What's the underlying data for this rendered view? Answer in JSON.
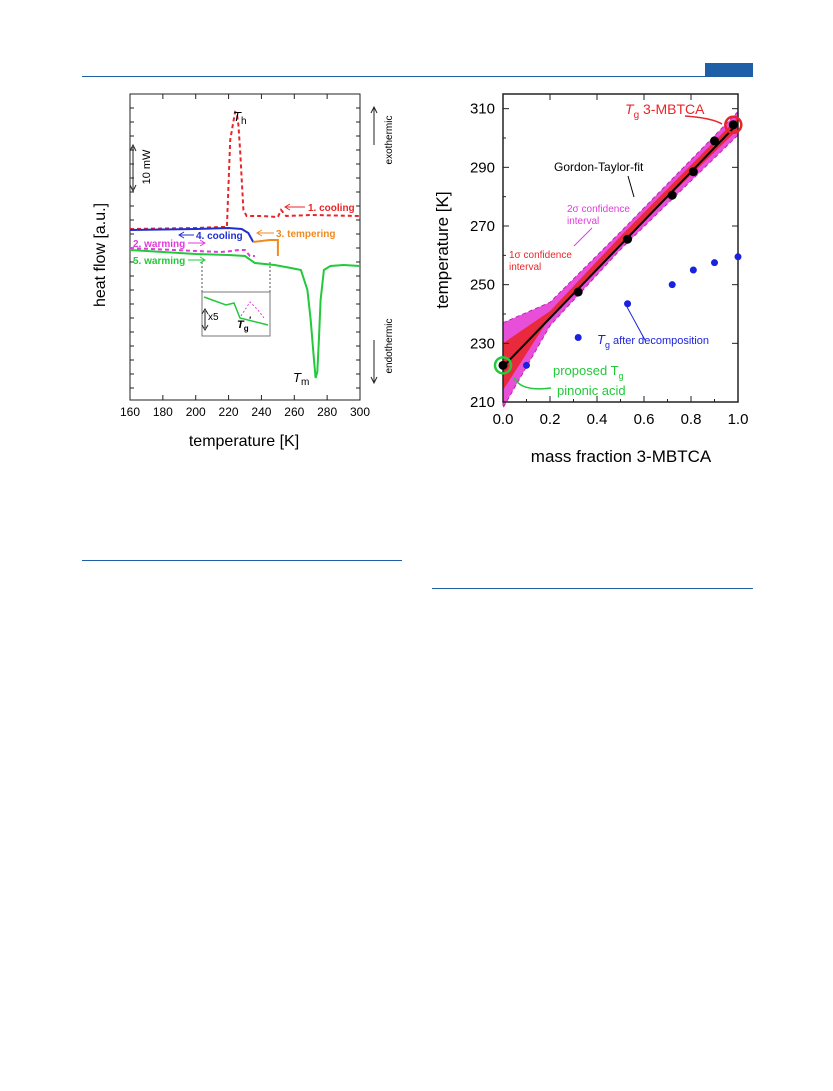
{
  "chart_data": [
    {
      "type": "line",
      "xlabel": "temperature [K]",
      "ylabel": "heat flow [a.u.]",
      "xlim": [
        160,
        300
      ],
      "xticks": [
        "160",
        "180",
        "200",
        "220",
        "240",
        "260",
        "280",
        "300"
      ],
      "grid": false,
      "scale_bar": "10 mW",
      "side_labels": {
        "top": "exothermic",
        "bottom": "endothermic"
      },
      "annotations": {
        "Th": "T",
        "Th_sub": "h",
        "Tm": "T",
        "Tm_sub": "m",
        "inset_scale": "x5",
        "inset_tg": "T",
        "inset_tg_sub": "g",
        "inset_tg_sup": "'"
      },
      "series": [
        {
          "name": "1. cooling",
          "color": "#e8262a",
          "style": "dashed",
          "x": [
            160,
            200,
            215,
            219,
            221,
            223,
            224,
            225,
            226,
            227,
            229,
            231,
            240,
            250,
            252,
            255,
            270,
            300
          ],
          "y": [
            229,
            228,
            227,
            227,
            140,
            121,
            112,
            113,
            125,
            150,
            210,
            216,
            216,
            217,
            210,
            216,
            215,
            216
          ]
        },
        {
          "name": "4. cooling",
          "color": "#1f2fd0",
          "style": "solid",
          "x": [
            160,
            200,
            220,
            228,
            232,
            235
          ],
          "y": [
            230,
            229,
            228,
            229,
            233,
            242
          ]
        },
        {
          "name": "3. tempering",
          "color": "#f08a1e",
          "style": "solid",
          "x": [
            235,
            245,
            250,
            250
          ],
          "y": [
            242,
            240,
            240,
            256
          ]
        },
        {
          "name": "2. warming",
          "color": "#e23bdc",
          "style": "dashed",
          "x": [
            160,
            200,
            215,
            222,
            226,
            230,
            233,
            236
          ],
          "y": [
            248,
            251,
            252,
            251,
            250,
            250,
            256,
            256
          ]
        },
        {
          "name": "5. warming",
          "color": "#22c93a",
          "style": "solid",
          "x": [
            160,
            200,
            220,
            230,
            236,
            248,
            258,
            264,
            268,
            270,
            272,
            273,
            274,
            275,
            276,
            278,
            282,
            290,
            300
          ],
          "y": [
            250,
            254,
            255,
            256,
            263,
            265,
            268,
            270,
            290,
            320,
            360,
            378,
            372,
            340,
            300,
            270,
            266,
            265,
            266
          ]
        }
      ]
    },
    {
      "type": "scatter",
      "xlabel": "mass fraction 3-MBTCA",
      "ylabel": "temperature [K]",
      "xlim": [
        0.0,
        1.0
      ],
      "ylim": [
        210,
        315
      ],
      "xticks": [
        "0.0",
        "0.2",
        "0.4",
        "0.6",
        "0.8",
        "1.0"
      ],
      "yticks": [
        "210",
        "230",
        "250",
        "270",
        "290",
        "310"
      ],
      "grid": false,
      "fit_label": "Gordon-Taylor-fit",
      "band_2sigma_label": [
        "2σ confidence",
        "interval"
      ],
      "band_1sigma_label": [
        "1σ confidence",
        "interval"
      ],
      "tg_label": {
        "main": "T",
        "sub": "g",
        "rest": " 3-MBTCA"
      },
      "decomp_label": {
        "main": "T",
        "sub": "g",
        "rest": " after decomposition"
      },
      "proposed_label": {
        "line1": "proposed T",
        "sub": "g",
        "line2": "pinonic acid"
      },
      "fit": {
        "x": [
          0.0,
          1.0
        ],
        "y": [
          222.0,
          305.0
        ]
      },
      "series": [
        {
          "name": "Gordon-Taylor data",
          "color": "#000000",
          "x": [
            0.0,
            0.32,
            0.53,
            0.72,
            0.81,
            0.9,
            0.98
          ],
          "y": [
            222.5,
            247.5,
            265.5,
            280.5,
            288.5,
            299.0,
            304.5
          ]
        },
        {
          "name": "T_g after decomposition",
          "color": "#1a22e0",
          "x": [
            0.1,
            0.32,
            0.53,
            0.72,
            0.81,
            0.9,
            1.0
          ],
          "y": [
            222.5,
            232.0,
            243.5,
            250.0,
            255.0,
            257.5,
            259.5
          ]
        }
      ]
    }
  ]
}
